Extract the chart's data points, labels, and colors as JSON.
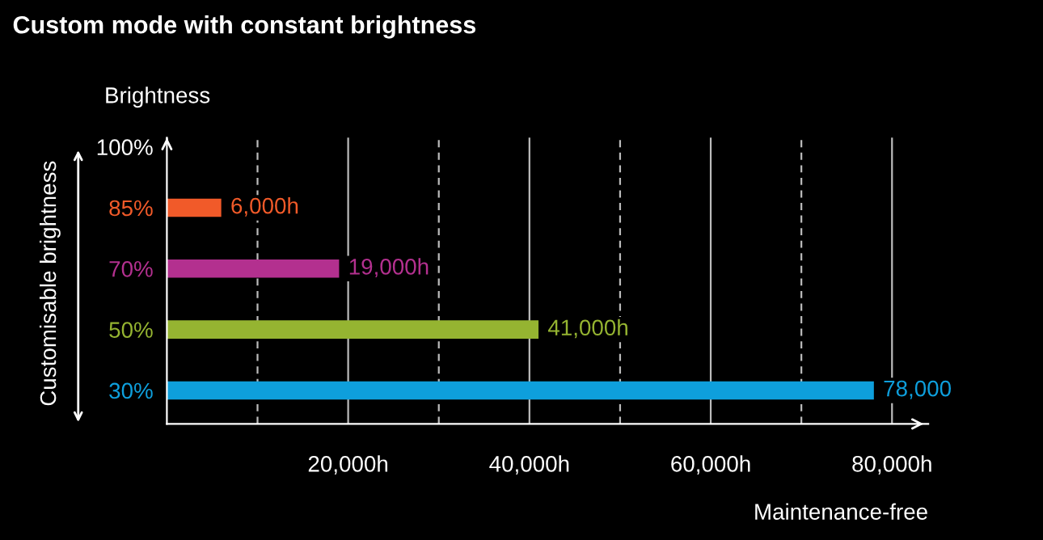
{
  "chart_data": {
    "type": "bar",
    "orientation": "horizontal",
    "title": "Custom mode with constant brightness",
    "xlabel": "Maintenance-free",
    "ylabel": "Customisable brightness",
    "annotations": [
      "Brightness"
    ],
    "categories": [
      "100%",
      "85%",
      "70%",
      "50%",
      "30%"
    ],
    "values": [
      null,
      6000,
      19000,
      41000,
      78000
    ],
    "colors": [
      "#ffffff",
      "#f15a29",
      "#b3308f",
      "#95b431",
      "#0e9fdc"
    ],
    "value_labels": [
      null,
      "6,000h",
      "19,000h",
      "41,000h",
      "78,000"
    ],
    "xlim": [
      0,
      84000
    ],
    "xticks": [
      {
        "value": 10000,
        "label": null
      },
      {
        "value": 20000,
        "label": "20,000h"
      },
      {
        "value": 30000,
        "label": null
      },
      {
        "value": 40000,
        "label": "40,000h"
      },
      {
        "value": 50000,
        "label": null
      },
      {
        "value": 60000,
        "label": "60,000h"
      },
      {
        "value": 70000,
        "label": null
      },
      {
        "value": 80000,
        "label": "80,000h"
      }
    ],
    "grid": "x"
  }
}
